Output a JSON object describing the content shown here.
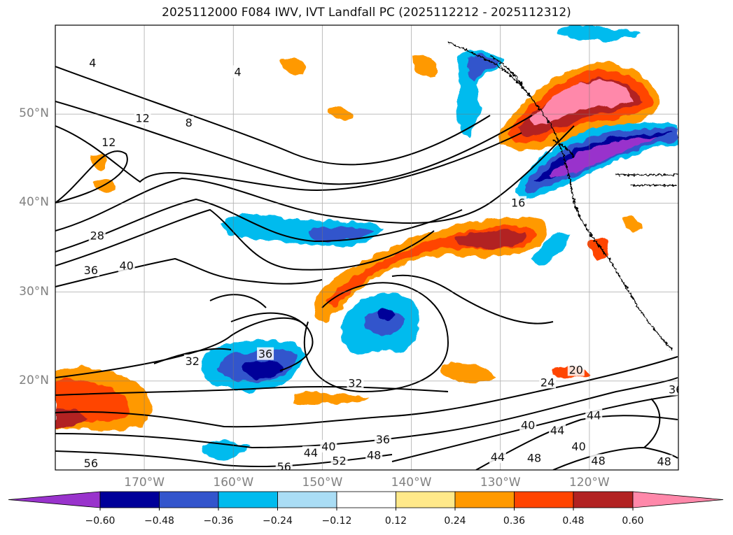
{
  "title": "2025112000 F084 IWV, IVT Landfall PC (2025112212 - 2025112312)",
  "map": {
    "projection": "equirectangular",
    "lon_range": [
      -180,
      -110
    ],
    "lat_range": [
      10,
      60
    ],
    "gridlines": true,
    "lat_labels": [
      {
        "lat": 50,
        "text": "50°N"
      },
      {
        "lat": 40,
        "text": "40°N"
      },
      {
        "lat": 30,
        "text": "30°N"
      },
      {
        "lat": 20,
        "text": "20°N"
      }
    ],
    "lon_labels": [
      {
        "lon": -170,
        "text": "170°W"
      },
      {
        "lon": -160,
        "text": "160°W"
      },
      {
        "lon": -150,
        "text": "150°W"
      },
      {
        "lon": -140,
        "text": "140°W"
      },
      {
        "lon": -130,
        "text": "130°W"
      },
      {
        "lon": -120,
        "text": "120°W"
      }
    ],
    "contour_labels": [
      {
        "text": "4",
        "lon": -175.8,
        "lat": 55.7
      },
      {
        "text": "4",
        "lon": -159.5,
        "lat": 54.7
      },
      {
        "text": "12",
        "lon": -170.2,
        "lat": 49.5
      },
      {
        "text": "8",
        "lon": -165.0,
        "lat": 49.0
      },
      {
        "text": "12",
        "lon": -174.0,
        "lat": 46.8
      },
      {
        "text": "16",
        "lon": -128.0,
        "lat": 40.0
      },
      {
        "text": "28",
        "lon": -175.3,
        "lat": 36.3
      },
      {
        "text": "36",
        "lon": -176.0,
        "lat": 32.4
      },
      {
        "text": "40",
        "lon": -172.0,
        "lat": 32.9
      },
      {
        "text": "32",
        "lon": -164.6,
        "lat": 22.2
      },
      {
        "text": "36",
        "lon": -156.4,
        "lat": 23.0
      },
      {
        "text": "32",
        "lon": -146.3,
        "lat": 19.7
      },
      {
        "text": "24",
        "lon": -124.7,
        "lat": 19.8
      },
      {
        "text": "20",
        "lon": -121.5,
        "lat": 21.2
      },
      {
        "text": "36",
        "lon": -110.3,
        "lat": 19.0
      },
      {
        "text": "44",
        "lon": -119.5,
        "lat": 16.1
      },
      {
        "text": "40",
        "lon": -126.9,
        "lat": 15.0
      },
      {
        "text": "44",
        "lon": -123.6,
        "lat": 14.4
      },
      {
        "text": "40",
        "lon": -149.3,
        "lat": 12.6
      },
      {
        "text": "36",
        "lon": -143.2,
        "lat": 13.4
      },
      {
        "text": "44",
        "lon": -151.3,
        "lat": 11.9
      },
      {
        "text": "52",
        "lon": -148.1,
        "lat": 11.0
      },
      {
        "text": "48",
        "lon": -144.2,
        "lat": 11.6
      },
      {
        "text": "40",
        "lon": -121.2,
        "lat": 12.6
      },
      {
        "text": "44",
        "lon": -130.3,
        "lat": 11.4
      },
      {
        "text": "48",
        "lon": -126.2,
        "lat": 11.3
      },
      {
        "text": "48",
        "lon": -119.0,
        "lat": 11.0
      },
      {
        "text": "48",
        "lon": -111.6,
        "lat": 10.9
      },
      {
        "text": "56",
        "lon": -176.0,
        "lat": 10.7
      },
      {
        "text": "56",
        "lon": -154.3,
        "lat": 10.3
      }
    ]
  },
  "colorbar": {
    "ticks": [
      "−0.60",
      "−0.48",
      "−0.36",
      "−0.24",
      "−0.12",
      "0.12",
      "0.24",
      "0.36",
      "0.48",
      "0.60"
    ],
    "colors": [
      "#9933cc",
      "#000099",
      "#3355cc",
      "#00bbee",
      "#aaddf5",
      "#ffffff",
      "#ffe98a",
      "#ff9900",
      "#ff4400",
      "#b22222",
      "#ff88aa"
    ],
    "extend": "both"
  }
}
